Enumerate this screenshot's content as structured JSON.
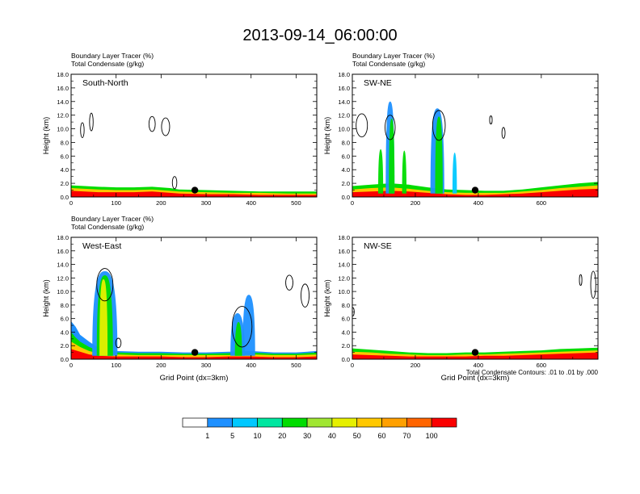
{
  "title": "2013-09-14_06:00:00",
  "colorbar": {
    "colors": [
      "#ffffff",
      "#1e90ff",
      "#00c8ff",
      "#00e6a0",
      "#00dc00",
      "#a0e632",
      "#e6f000",
      "#ffc800",
      "#ffa000",
      "#ff6400",
      "#fa0000"
    ],
    "labels": [
      "1",
      "5",
      "10",
      "20",
      "30",
      "40",
      "50",
      "60",
      "70",
      "100"
    ]
  },
  "footnote": "Total Condensate Contours: .01 to .01 by .000",
  "chart_data": [
    {
      "type": "contour",
      "panel_label": "South-North",
      "title_line1": "Boundary Layer Tracer   (%)",
      "title_line2": "Total Condensate   (g/kg)",
      "ylabel": "Height (km)",
      "xlabel": "",
      "xlim": [
        0,
        546
      ],
      "ylim": [
        0,
        18
      ],
      "xticks": [
        "0",
        "100",
        "200",
        "300",
        "400",
        "500"
      ],
      "yticks": [
        "0.0",
        "2.0",
        "4.0",
        "6.0",
        "8.0",
        "10.0",
        "12.0",
        "14.0",
        "16.0",
        "18.0"
      ],
      "marker_x": 275,
      "marker_y": 1.0,
      "tracer_layers": [
        {
          "color": "#00dc00",
          "x": [
            0,
            30,
            60,
            100,
            140,
            180,
            220,
            240,
            300,
            360,
            420,
            480,
            546
          ],
          "top": [
            1.7,
            1.6,
            1.5,
            1.4,
            1.4,
            1.5,
            1.3,
            1.1,
            1.0,
            0.9,
            0.8,
            0.8,
            0.8
          ]
        },
        {
          "color": "#ffc800",
          "x": [
            0,
            30,
            60,
            100,
            140,
            180,
            220,
            240,
            300,
            360,
            420,
            480,
            546
          ],
          "top": [
            1.3,
            1.2,
            1.1,
            1.0,
            1.0,
            1.1,
            0.9,
            0.8,
            0.7,
            0.6,
            0.6,
            0.5,
            0.5
          ]
        },
        {
          "color": "#fa0000",
          "x": [
            0,
            30,
            60,
            100,
            140,
            180,
            220,
            240,
            300,
            360,
            420,
            480,
            546
          ],
          "top": [
            0.9,
            0.8,
            0.7,
            0.7,
            0.7,
            0.8,
            0.6,
            0.5,
            0.4,
            0.4,
            0.3,
            0.3,
            0.3
          ]
        }
      ],
      "cloud_contours": [
        {
          "cx": 25,
          "cy": 9.8,
          "rx": 4,
          "ry": 1.1
        },
        {
          "cx": 45,
          "cy": 11.0,
          "rx": 4,
          "ry": 1.3
        },
        {
          "cx": 180,
          "cy": 10.7,
          "rx": 7,
          "ry": 1.1
        },
        {
          "cx": 210,
          "cy": 10.3,
          "rx": 9,
          "ry": 1.3
        },
        {
          "cx": 230,
          "cy": 2.1,
          "rx": 5,
          "ry": 0.9
        }
      ]
    },
    {
      "type": "contour",
      "panel_label": "SW-NE",
      "title_line1": "Boundary Layer Tracer   (%)",
      "title_line2": "Total Condensate   (g/kg)",
      "ylabel": "Height (km)",
      "xlabel": "",
      "xlim": [
        0,
        780
      ],
      "ylim": [
        0,
        18
      ],
      "xticks": [
        "0",
        "200",
        "400",
        "600"
      ],
      "yticks": [
        "0.0",
        "2.0",
        "4.0",
        "6.0",
        "8.0",
        "10.0",
        "12.0",
        "14.0",
        "16.0",
        "18.0"
      ],
      "marker_x": 390,
      "marker_y": 1.0,
      "tracer_layers": [
        {
          "color": "#00dc00",
          "x": [
            0,
            60,
            120,
            180,
            240,
            300,
            360,
            420,
            480,
            540,
            600,
            660,
            720,
            780
          ],
          "top": [
            1.6,
            1.8,
            2.0,
            1.8,
            1.4,
            1.1,
            1.0,
            0.9,
            0.9,
            1.1,
            1.4,
            1.7,
            2.0,
            2.2
          ]
        },
        {
          "color": "#ffc800",
          "x": [
            0,
            60,
            120,
            180,
            240,
            300,
            360,
            420,
            480,
            540,
            600,
            660,
            720,
            780
          ],
          "top": [
            1.1,
            1.3,
            1.4,
            1.2,
            0.9,
            0.7,
            0.6,
            0.6,
            0.6,
            0.8,
            1.0,
            1.3,
            1.5,
            1.7
          ]
        },
        {
          "color": "#fa0000",
          "x": [
            0,
            60,
            120,
            180,
            240,
            300,
            360,
            420,
            480,
            540,
            600,
            660,
            720,
            780
          ],
          "top": [
            0.7,
            0.8,
            0.9,
            0.8,
            0.6,
            0.4,
            0.3,
            0.3,
            0.4,
            0.5,
            0.7,
            0.9,
            1.1,
            1.2
          ]
        }
      ],
      "convection": [
        {
          "x": 120,
          "halfw": 14,
          "top": 14.0,
          "color": "#1e90ff"
        },
        {
          "x": 125,
          "halfw": 9,
          "top": 11.5,
          "color": "#00dc00"
        },
        {
          "x": 270,
          "halfw": 22,
          "top": 13.0,
          "color": "#1e90ff"
        },
        {
          "x": 275,
          "halfw": 12,
          "top": 11.8,
          "color": "#00dc00"
        },
        {
          "x": 90,
          "halfw": 8,
          "top": 7.0,
          "color": "#00dc00"
        },
        {
          "x": 165,
          "halfw": 7,
          "top": 6.8,
          "color": "#00dc00"
        },
        {
          "x": 325,
          "halfw": 7,
          "top": 6.5,
          "color": "#00c8ff"
        }
      ],
      "cloud_contours": [
        {
          "cx": 30,
          "cy": 10.5,
          "rx": 18,
          "ry": 1.7
        },
        {
          "cx": 120,
          "cy": 10.2,
          "rx": 16,
          "ry": 1.8
        },
        {
          "cx": 275,
          "cy": 10.5,
          "rx": 20,
          "ry": 2.2
        },
        {
          "cx": 440,
          "cy": 11.3,
          "rx": 4,
          "ry": 0.6
        },
        {
          "cx": 480,
          "cy": 9.4,
          "rx": 5,
          "ry": 0.8
        }
      ]
    },
    {
      "type": "contour",
      "panel_label": "West-East",
      "title_line1": "Boundary Layer Tracer   (%)",
      "title_line2": "Total Condensate   (g/kg)",
      "ylabel": "Height (km)",
      "xlabel": "Grid Point (dx=3km)",
      "xlim": [
        0,
        546
      ],
      "ylim": [
        0,
        18
      ],
      "xticks": [
        "0",
        "100",
        "200",
        "300",
        "400",
        "500"
      ],
      "yticks": [
        "0.0",
        "2.0",
        "4.0",
        "6.0",
        "8.0",
        "10.0",
        "12.0",
        "14.0",
        "16.0",
        "18.0"
      ],
      "marker_x": 275,
      "marker_y": 1.0,
      "tracer_layers": [
        {
          "color": "#1e90ff",
          "x": [
            0,
            10,
            20,
            40,
            60,
            100,
            150,
            200,
            250,
            300,
            350,
            400,
            450,
            500,
            546
          ],
          "top": [
            5.6,
            4.8,
            3.6,
            2.6,
            1.7,
            1.2,
            1.1,
            1.1,
            1.0,
            1.0,
            1.1,
            1.2,
            1.0,
            1.0,
            1.2
          ]
        },
        {
          "color": "#00dc00",
          "x": [
            0,
            10,
            20,
            40,
            60,
            100,
            150,
            200,
            250,
            300,
            350,
            400,
            450,
            500,
            546
          ],
          "top": [
            4.0,
            3.2,
            2.6,
            1.8,
            1.3,
            1.0,
            0.9,
            0.9,
            0.8,
            0.8,
            0.9,
            1.0,
            0.8,
            0.8,
            1.0
          ]
        },
        {
          "color": "#ffc800",
          "x": [
            0,
            10,
            20,
            40,
            60,
            100,
            150,
            200,
            250,
            300,
            350,
            400,
            450,
            500,
            546
          ],
          "top": [
            2.6,
            2.2,
            1.8,
            1.2,
            0.9,
            0.7,
            0.6,
            0.6,
            0.6,
            0.6,
            0.6,
            0.7,
            0.6,
            0.6,
            0.7
          ]
        },
        {
          "color": "#fa0000",
          "x": [
            0,
            10,
            20,
            40,
            60,
            100,
            150,
            200,
            250,
            300,
            350,
            400,
            450,
            500,
            546
          ],
          "top": [
            1.5,
            1.3,
            1.1,
            0.7,
            0.5,
            0.4,
            0.4,
            0.4,
            0.3,
            0.3,
            0.4,
            0.4,
            0.3,
            0.3,
            0.4
          ]
        }
      ],
      "convection": [
        {
          "x": 75,
          "halfw": 28,
          "top": 13.0,
          "color": "#1e90ff"
        },
        {
          "x": 75,
          "halfw": 18,
          "top": 12.4,
          "color": "#00dc00"
        },
        {
          "x": 72,
          "halfw": 9,
          "top": 11.8,
          "color": "#e6f000"
        },
        {
          "x": 395,
          "halfw": 14,
          "top": 9.5,
          "color": "#1e90ff"
        },
        {
          "x": 370,
          "halfw": 16,
          "top": 6.8,
          "color": "#1e90ff"
        },
        {
          "x": 372,
          "halfw": 8,
          "top": 5.5,
          "color": "#00dc00"
        }
      ],
      "cloud_contours": [
        {
          "cx": 75,
          "cy": 11.0,
          "rx": 18,
          "ry": 2.4
        },
        {
          "cx": 105,
          "cy": 2.4,
          "rx": 6,
          "ry": 0.7
        },
        {
          "cx": 380,
          "cy": 4.8,
          "rx": 22,
          "ry": 3.0
        },
        {
          "cx": 485,
          "cy": 11.3,
          "rx": 8,
          "ry": 1.1
        },
        {
          "cx": 520,
          "cy": 9.4,
          "rx": 9,
          "ry": 1.7
        }
      ]
    },
    {
      "type": "contour",
      "panel_label": "NW-SE",
      "title_line1": "",
      "title_line2": "",
      "ylabel": "Height (km)",
      "xlabel": "Grid Point (dx=3km)",
      "xlim": [
        0,
        780
      ],
      "ylim": [
        0,
        18
      ],
      "xticks": [
        "0",
        "200",
        "400",
        "600"
      ],
      "yticks": [
        "0.0",
        "2.0",
        "4.0",
        "6.0",
        "8.0",
        "10.0",
        "12.0",
        "14.0",
        "16.0",
        "18.0"
      ],
      "marker_x": 390,
      "marker_y": 1.0,
      "tracer_layers": [
        {
          "color": "#00dc00",
          "x": [
            0,
            60,
            120,
            180,
            240,
            300,
            360,
            420,
            480,
            540,
            600,
            660,
            720,
            780
          ],
          "top": [
            1.6,
            1.4,
            1.2,
            1.0,
            0.9,
            0.9,
            1.0,
            1.0,
            1.1,
            1.2,
            1.3,
            1.5,
            1.6,
            1.7
          ]
        },
        {
          "color": "#ffc800",
          "x": [
            0,
            60,
            120,
            180,
            240,
            300,
            360,
            420,
            480,
            540,
            600,
            660,
            720,
            780
          ],
          "top": [
            1.1,
            1.0,
            0.8,
            0.7,
            0.6,
            0.6,
            0.7,
            0.7,
            0.8,
            0.9,
            1.0,
            1.1,
            1.2,
            1.3
          ]
        },
        {
          "color": "#fa0000",
          "x": [
            0,
            60,
            120,
            180,
            240,
            300,
            360,
            420,
            480,
            540,
            600,
            660,
            720,
            780
          ],
          "top": [
            0.7,
            0.6,
            0.5,
            0.4,
            0.4,
            0.4,
            0.4,
            0.5,
            0.5,
            0.6,
            0.7,
            0.8,
            0.9,
            1.0
          ]
        }
      ],
      "cloud_contours": [
        {
          "cx": 725,
          "cy": 11.7,
          "rx": 4,
          "ry": 0.8
        },
        {
          "cx": 765,
          "cy": 11.0,
          "rx": 8,
          "ry": 2.0
        },
        {
          "cx": 2,
          "cy": 7.0,
          "rx": 2,
          "ry": 0.6
        }
      ]
    }
  ]
}
